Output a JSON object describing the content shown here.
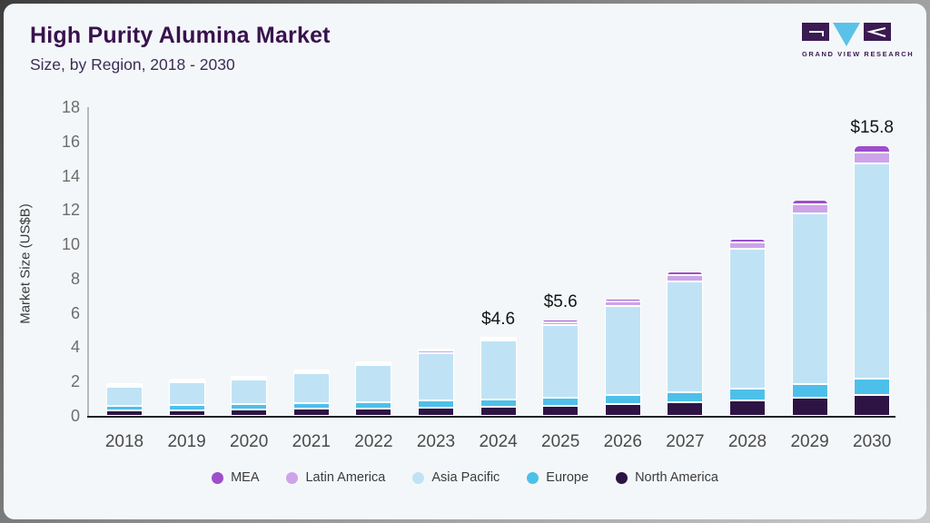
{
  "header": {
    "title": "High Purity Alumina Market",
    "subtitle": "Size, by Region, 2018 - 2030"
  },
  "logo": {
    "name": "GRAND VIEW RESEARCH",
    "dark_color": "#3a1b52",
    "accent_color": "#5ac2e9"
  },
  "chart_data": {
    "type": "bar",
    "stacked": true,
    "title": "High Purity Alumina Market Size, by Region, 2018 - 2030",
    "ylabel": "Market Size (US$B)",
    "ylim": [
      0,
      18
    ],
    "yticks": [
      0,
      2,
      4,
      6,
      8,
      10,
      12,
      14,
      16,
      18
    ],
    "grid": false,
    "legend_position": "bottom",
    "categories": [
      "2018",
      "2019",
      "2020",
      "2021",
      "2022",
      "2023",
      "2024",
      "2025",
      "2026",
      "2027",
      "2028",
      "2029",
      "2030"
    ],
    "series": [
      {
        "name": "North America",
        "color": "#2d1445",
        "values": [
          0.3,
          0.33,
          0.35,
          0.4,
          0.44,
          0.48,
          0.52,
          0.6,
          0.7,
          0.8,
          0.92,
          1.05,
          1.2
        ]
      },
      {
        "name": "Europe",
        "color": "#4dc0ea",
        "values": [
          0.27,
          0.3,
          0.32,
          0.35,
          0.38,
          0.42,
          0.45,
          0.48,
          0.5,
          0.58,
          0.65,
          0.82,
          0.95
        ]
      },
      {
        "name": "Asia Pacific",
        "color": "#bfe3f5",
        "values": [
          1.1,
          1.32,
          1.45,
          1.76,
          2.15,
          2.78,
          3.4,
          4.22,
          5.2,
          6.45,
          8.15,
          9.95,
          12.55
        ]
      },
      {
        "name": "Latin America",
        "color": "#cda4e8",
        "values": [
          0.03,
          0.04,
          0.05,
          0.06,
          0.08,
          0.12,
          0.15,
          0.18,
          0.28,
          0.38,
          0.38,
          0.5,
          0.68
        ]
      },
      {
        "name": "MEA",
        "color": "#9d4ecb",
        "values": [
          0.01,
          0.02,
          0.02,
          0.02,
          0.03,
          0.05,
          0.08,
          0.12,
          0.15,
          0.2,
          0.22,
          0.3,
          0.4
        ]
      }
    ],
    "totals": [
      1.7,
      2.0,
      2.2,
      2.6,
      3.1,
      3.8,
      4.6,
      5.6,
      6.8,
      8.4,
      10.3,
      12.6,
      15.8
    ],
    "data_labels": [
      {
        "category": "2024",
        "text": "$4.6"
      },
      {
        "category": "2025",
        "text": "$5.6"
      },
      {
        "category": "2030",
        "text": "$15.8"
      }
    ],
    "legend": [
      {
        "label": "MEA",
        "color": "#9d4ecb"
      },
      {
        "label": "Latin America",
        "color": "#cda4e8"
      },
      {
        "label": "Asia Pacific",
        "color": "#bfe3f5"
      },
      {
        "label": "Europe",
        "color": "#4dc0ea"
      },
      {
        "label": "North America",
        "color": "#2d1445"
      }
    ]
  }
}
